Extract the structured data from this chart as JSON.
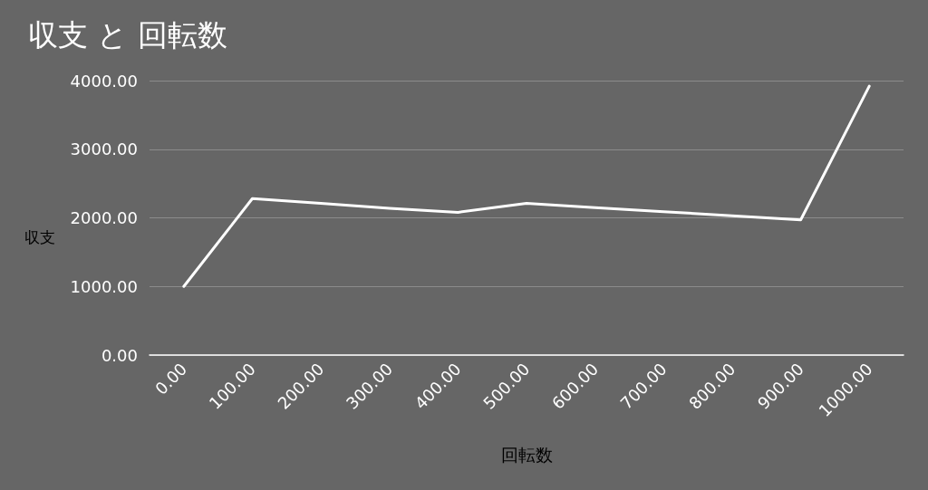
{
  "chart_data": {
    "type": "line",
    "title": "収支 と 回転数",
    "xlabel": "回転数",
    "ylabel": "収支",
    "categories": [
      "0.00",
      "100.00",
      "200.00",
      "300.00",
      "400.00",
      "500.00",
      "600.00",
      "700.00",
      "800.00",
      "900.00",
      "1000.00"
    ],
    "series": [
      {
        "color": "#ffffff",
        "values": [
          1000,
          2280,
          2210,
          2140,
          2080,
          2210,
          2150,
          2090,
          2030,
          1970,
          3920
        ]
      }
    ],
    "ylim": [
      0,
      4000
    ],
    "yticks": [
      {
        "value": 0,
        "label": "0.00"
      },
      {
        "value": 1000,
        "label": "1000.00"
      },
      {
        "value": 2000,
        "label": "2000.00"
      },
      {
        "value": 3000,
        "label": "3000.00"
      },
      {
        "value": 4000,
        "label": "4000.00"
      }
    ],
    "grid": "y",
    "marker": "none",
    "line_style": "solid"
  }
}
